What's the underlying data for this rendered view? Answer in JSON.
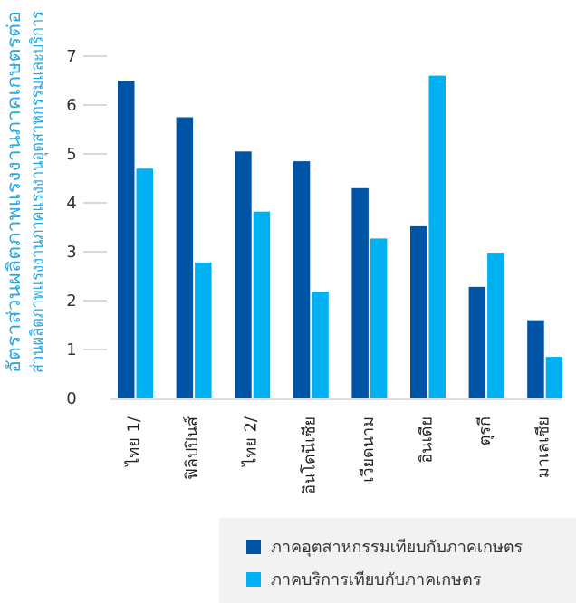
{
  "chart_data": {
    "type": "bar",
    "title": "",
    "ylabel_lines": [
      "อัตราส่วนผลิตภาพแรงงานภาคเกษตรต่อ",
      "ส่วนผลิตภาพแรงงานภาคแรงงานอุตสาหกรรมและบริการ"
    ],
    "xlabel": "",
    "categories": [
      "ไทย 1/",
      "ฟิลิปปินส์",
      "ไทย 2/",
      "อินโดนีเซีย",
      "เวียดนาม",
      "อินเดีย",
      "ตุรกี",
      "มาเลเซีย"
    ],
    "series": [
      {
        "name": "ภาคอุตสาหกรรมเทียบกับภาคเกษตร",
        "color": "#0054a6",
        "values": [
          6.5,
          5.75,
          5.05,
          4.85,
          4.3,
          3.52,
          2.28,
          1.6
        ]
      },
      {
        "name": "ภาคบริการเทียบกับภาคเกษตร",
        "color": "#00b0f0",
        "values": [
          4.7,
          2.78,
          3.82,
          2.18,
          3.27,
          6.6,
          2.98,
          0.85
        ]
      }
    ],
    "ylim": [
      0,
      7
    ],
    "yticks": [
      "0",
      "1",
      "2",
      "3",
      "4",
      "5",
      "6",
      "7"
    ],
    "grid": false,
    "legend_position": "bottom-right",
    "colors": {
      "axis_label": "#2aa7e1",
      "legend_bg": "#f2f2f2",
      "tick_line": "#cccccc"
    }
  }
}
